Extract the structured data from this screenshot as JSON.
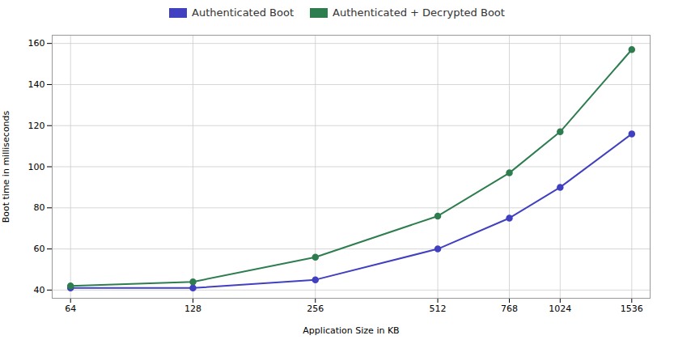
{
  "chart_data": {
    "type": "line",
    "xlabel": "Application Size in KB",
    "ylabel": "Boot time in milliseconds",
    "x": [
      64,
      128,
      256,
      512,
      768,
      1024,
      1536
    ],
    "series": [
      {
        "name": "Authenticated Boot",
        "color": "#4040c0",
        "marker": "circle",
        "values": [
          41,
          41,
          45,
          60,
          75,
          90,
          116
        ]
      },
      {
        "name": "Authenticated + Decrypted Boot",
        "color": "#2e7d4f",
        "marker": "circle",
        "values": [
          42,
          44,
          56,
          76,
          97,
          117,
          157
        ]
      }
    ],
    "log": "x",
    "xlim": [
      57.68,
      1704.3
    ],
    "xticks": [
      64,
      128,
      256,
      512,
      768,
      1024,
      1536
    ],
    "ylim": [
      36,
      164
    ],
    "yticks": [
      40,
      60,
      80,
      100,
      120,
      140,
      160
    ],
    "grid": true,
    "legend": "upper center"
  }
}
